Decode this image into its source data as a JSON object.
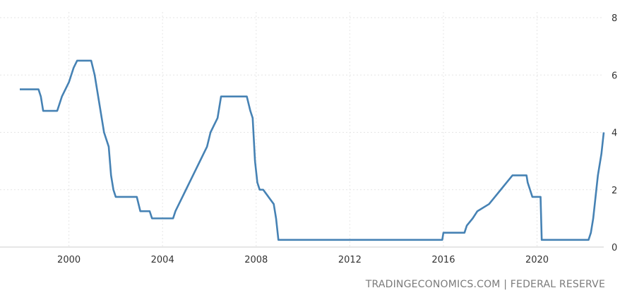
{
  "source_text": "TRADINGECONOMICS.COM | FEDERAL RESERVE",
  "colors": {
    "line": "#4682b4",
    "grid": "#e6e6e6",
    "text": "#333333",
    "source": "#7b7b7b"
  },
  "chart_data": {
    "type": "line",
    "title": "",
    "xlabel": "",
    "ylabel": "",
    "xlim": [
      1997.9,
      2022.85
    ],
    "ylim": [
      0,
      8
    ],
    "xticks": [
      2000,
      2004,
      2008,
      2012,
      2016,
      2020
    ],
    "yticks": [
      0,
      2,
      4,
      6,
      8
    ],
    "grid": true,
    "y_axis_side": "right",
    "series": [
      {
        "x": [
          1997.9,
          1998.7,
          1998.8,
          1998.9,
          1999.5,
          1999.6,
          1999.7,
          1999.85,
          2000.0,
          2000.1,
          2000.2,
          2000.35,
          2000.95,
          2001.1,
          2001.2,
          2001.3,
          2001.4,
          2001.5,
          2001.6,
          2001.7,
          2001.8,
          2001.9,
          2002.0,
          2002.9,
          2003.05,
          2003.45,
          2003.55,
          2004.45,
          2004.55,
          2004.7,
          2004.85,
          2005.0,
          2005.15,
          2005.3,
          2005.45,
          2005.6,
          2005.75,
          2005.9,
          2006.05,
          2006.2,
          2006.35,
          2006.5,
          2007.6,
          2007.75,
          2007.85,
          2007.95,
          2008.05,
          2008.15,
          2008.3,
          2008.75,
          2008.85,
          2008.95,
          2009.0,
          2015.95,
          2016.0,
          2016.9,
          2017.0,
          2017.25,
          2017.45,
          2017.95,
          2018.2,
          2018.45,
          2018.7,
          2018.95,
          2019.55,
          2019.6,
          2019.7,
          2019.8,
          2020.15,
          2020.2,
          2020.3,
          2022.2,
          2022.3,
          2022.4,
          2022.5,
          2022.6,
          2022.75,
          2022.85
        ],
        "y": [
          5.5,
          5.5,
          5.25,
          4.75,
          4.75,
          5.0,
          5.25,
          5.5,
          5.75,
          6.0,
          6.25,
          6.5,
          6.5,
          6.0,
          5.5,
          5.0,
          4.5,
          4.0,
          3.75,
          3.5,
          2.5,
          2.0,
          1.75,
          1.75,
          1.25,
          1.25,
          1.0,
          1.0,
          1.25,
          1.5,
          1.75,
          2.0,
          2.25,
          2.5,
          2.75,
          3.0,
          3.25,
          3.5,
          4.0,
          4.25,
          4.5,
          5.25,
          5.25,
          4.75,
          4.5,
          3.0,
          2.25,
          2.0,
          2.0,
          1.5,
          1.0,
          0.25,
          0.25,
          0.25,
          0.5,
          0.5,
          0.75,
          1.0,
          1.25,
          1.5,
          1.75,
          2.0,
          2.25,
          2.5,
          2.5,
          2.25,
          2.0,
          1.75,
          1.75,
          0.25,
          0.25,
          0.25,
          0.5,
          1.0,
          1.75,
          2.5,
          3.25,
          4.0
        ]
      }
    ]
  }
}
